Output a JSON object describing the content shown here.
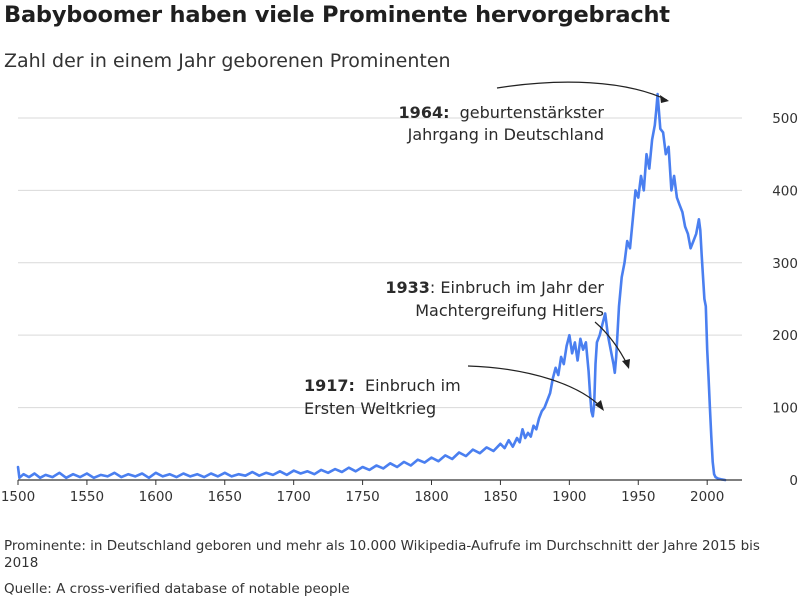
{
  "title": "Babyboomer haben viele Prominente hervorgebracht",
  "subtitle": "Zahl der in einem Jahr geborenen Prominenten",
  "footnote": "Prominente: in Deutschland geboren und mehr als 10.000 Wikipedia-Aufrufe im Durchschnitt der Jahre 2015 bis 2018",
  "source": "Quelle: A cross-verified database of notable people",
  "colors": {
    "line": "#4a7ff0",
    "grid": "#d9d9d9",
    "axis": "#333333",
    "arrow": "#222222"
  },
  "chart_data": {
    "type": "line",
    "title": "Babyboomer haben viele Prominente hervorgebracht",
    "subtitle": "Zahl der in einem Jahr geborenen Prominenten",
    "xlim": [
      1500,
      2018
    ],
    "ylim": [
      0,
      540
    ],
    "x_ticks": [
      1500,
      1550,
      1600,
      1650,
      1700,
      1750,
      1800,
      1850,
      1900,
      1950,
      2000
    ],
    "y_ticks": [
      0,
      100,
      200,
      300,
      400,
      500
    ],
    "y_axis_side": "right",
    "grid": "horizontal",
    "series": [
      {
        "points": [
          [
            1500,
            18
          ],
          [
            1501,
            3
          ],
          [
            1504,
            8
          ],
          [
            1508,
            4
          ],
          [
            1512,
            9
          ],
          [
            1516,
            3
          ],
          [
            1520,
            7
          ],
          [
            1525,
            4
          ],
          [
            1530,
            10
          ],
          [
            1535,
            3
          ],
          [
            1540,
            8
          ],
          [
            1545,
            4
          ],
          [
            1550,
            9
          ],
          [
            1555,
            3
          ],
          [
            1560,
            7
          ],
          [
            1565,
            5
          ],
          [
            1570,
            10
          ],
          [
            1575,
            4
          ],
          [
            1580,
            8
          ],
          [
            1585,
            5
          ],
          [
            1590,
            9
          ],
          [
            1595,
            3
          ],
          [
            1600,
            10
          ],
          [
            1605,
            5
          ],
          [
            1610,
            8
          ],
          [
            1615,
            4
          ],
          [
            1620,
            9
          ],
          [
            1625,
            5
          ],
          [
            1630,
            8
          ],
          [
            1635,
            4
          ],
          [
            1640,
            9
          ],
          [
            1645,
            5
          ],
          [
            1650,
            10
          ],
          [
            1655,
            5
          ],
          [
            1660,
            8
          ],
          [
            1665,
            6
          ],
          [
            1670,
            11
          ],
          [
            1675,
            6
          ],
          [
            1680,
            10
          ],
          [
            1685,
            7
          ],
          [
            1690,
            12
          ],
          [
            1695,
            7
          ],
          [
            1700,
            13
          ],
          [
            1705,
            9
          ],
          [
            1710,
            12
          ],
          [
            1715,
            8
          ],
          [
            1720,
            14
          ],
          [
            1725,
            10
          ],
          [
            1730,
            15
          ],
          [
            1735,
            11
          ],
          [
            1740,
            17
          ],
          [
            1745,
            12
          ],
          [
            1750,
            18
          ],
          [
            1755,
            14
          ],
          [
            1760,
            20
          ],
          [
            1765,
            16
          ],
          [
            1770,
            23
          ],
          [
            1775,
            18
          ],
          [
            1780,
            25
          ],
          [
            1785,
            20
          ],
          [
            1790,
            28
          ],
          [
            1795,
            24
          ],
          [
            1800,
            31
          ],
          [
            1805,
            26
          ],
          [
            1810,
            34
          ],
          [
            1815,
            29
          ],
          [
            1820,
            38
          ],
          [
            1825,
            33
          ],
          [
            1830,
            42
          ],
          [
            1835,
            37
          ],
          [
            1840,
            45
          ],
          [
            1845,
            40
          ],
          [
            1850,
            50
          ],
          [
            1853,
            44
          ],
          [
            1856,
            55
          ],
          [
            1859,
            46
          ],
          [
            1862,
            58
          ],
          [
            1864,
            52
          ],
          [
            1866,
            70
          ],
          [
            1868,
            58
          ],
          [
            1870,
            65
          ],
          [
            1872,
            60
          ],
          [
            1874,
            75
          ],
          [
            1876,
            70
          ],
          [
            1878,
            85
          ],
          [
            1880,
            95
          ],
          [
            1882,
            100
          ],
          [
            1884,
            110
          ],
          [
            1886,
            120
          ],
          [
            1888,
            140
          ],
          [
            1890,
            155
          ],
          [
            1892,
            145
          ],
          [
            1894,
            170
          ],
          [
            1896,
            160
          ],
          [
            1898,
            185
          ],
          [
            1900,
            200
          ],
          [
            1902,
            175
          ],
          [
            1904,
            190
          ],
          [
            1906,
            165
          ],
          [
            1908,
            195
          ],
          [
            1910,
            180
          ],
          [
            1912,
            190
          ],
          [
            1914,
            150
          ],
          [
            1915,
            120
          ],
          [
            1916,
            95
          ],
          [
            1917,
            88
          ],
          [
            1918,
            105
          ],
          [
            1919,
            160
          ],
          [
            1920,
            190
          ],
          [
            1922,
            200
          ],
          [
            1924,
            215
          ],
          [
            1926,
            230
          ],
          [
            1928,
            200
          ],
          [
            1930,
            180
          ],
          [
            1932,
            160
          ],
          [
            1933,
            148
          ],
          [
            1934,
            170
          ],
          [
            1936,
            240
          ],
          [
            1938,
            280
          ],
          [
            1940,
            300
          ],
          [
            1942,
            330
          ],
          [
            1944,
            320
          ],
          [
            1946,
            360
          ],
          [
            1948,
            400
          ],
          [
            1950,
            390
          ],
          [
            1952,
            420
          ],
          [
            1954,
            400
          ],
          [
            1956,
            450
          ],
          [
            1958,
            430
          ],
          [
            1960,
            470
          ],
          [
            1962,
            490
          ],
          [
            1963,
            510
          ],
          [
            1964,
            533
          ],
          [
            1965,
            510
          ],
          [
            1966,
            485
          ],
          [
            1968,
            480
          ],
          [
            1970,
            450
          ],
          [
            1972,
            460
          ],
          [
            1974,
            400
          ],
          [
            1976,
            420
          ],
          [
            1978,
            390
          ],
          [
            1980,
            380
          ],
          [
            1982,
            370
          ],
          [
            1984,
            350
          ],
          [
            1986,
            340
          ],
          [
            1988,
            320
          ],
          [
            1990,
            330
          ],
          [
            1992,
            340
          ],
          [
            1994,
            360
          ],
          [
            1995,
            345
          ],
          [
            1996,
            310
          ],
          [
            1998,
            250
          ],
          [
            1999,
            240
          ],
          [
            2000,
            180
          ],
          [
            2001,
            140
          ],
          [
            2002,
            100
          ],
          [
            2003,
            60
          ],
          [
            2004,
            25
          ],
          [
            2005,
            8
          ],
          [
            2006,
            4
          ],
          [
            2008,
            2
          ],
          [
            2010,
            1
          ],
          [
            2013,
            0
          ]
        ]
      }
    ],
    "annotations": [
      {
        "bold": "1964:",
        "lines": [
          "geburtenstärkster",
          "Jahrgang in Deutschland"
        ],
        "target": [
          1964,
          533
        ]
      },
      {
        "bold": "1933",
        "lines": [
          ": Einbruch im Jahr der",
          "Machtergreifung Hitlers"
        ],
        "target": [
          1933,
          148
        ]
      },
      {
        "bold": "1917:",
        "lines": [
          "Einbruch im",
          "Ersten Weltkrieg"
        ],
        "target": [
          1917,
          88
        ]
      }
    ]
  }
}
